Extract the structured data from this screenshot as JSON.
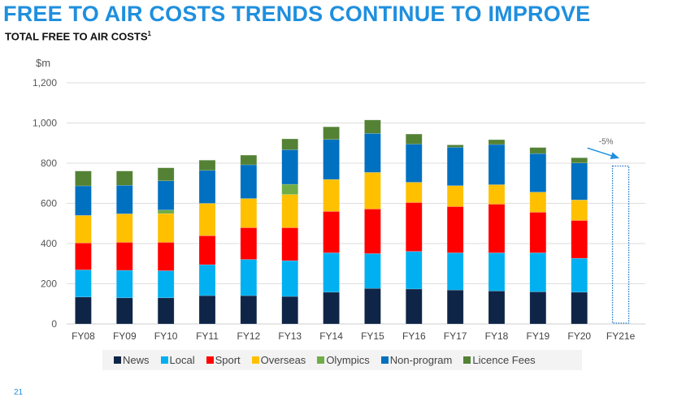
{
  "header": {
    "title": "FREE TO AIR COSTS TRENDS CONTINUE TO IMPROVE",
    "subtitle": "TOTAL FREE TO AIR COSTS",
    "subtitle_footnote": "1"
  },
  "page_number": "21",
  "chart_data": {
    "type": "bar",
    "stacked": true,
    "title": "TOTAL FREE TO AIR COSTS",
    "xlabel": "",
    "ylabel": "$m",
    "ylim": [
      0,
      1200
    ],
    "yticks": [
      0,
      200,
      400,
      600,
      800,
      1000,
      1200
    ],
    "ytick_labels": [
      "0",
      "200",
      "400",
      "600",
      "800",
      "1,000",
      "1,200"
    ],
    "grid": true,
    "legend_position": "bottom",
    "categories": [
      "FY08",
      "FY09",
      "FY10",
      "FY11",
      "FY12",
      "FY13",
      "FY14",
      "FY15",
      "FY16",
      "FY17",
      "FY18",
      "FY19",
      "FY20",
      "FY21e"
    ],
    "series": [
      {
        "name": "News",
        "color": "#0e2547",
        "values": [
          134,
          130,
          130,
          141,
          141,
          137,
          158,
          177,
          174,
          169,
          164,
          160,
          158,
          null
        ]
      },
      {
        "name": "Local",
        "color": "#00b0f0",
        "values": [
          135,
          137,
          135,
          154,
          180,
          178,
          196,
          173,
          187,
          185,
          190,
          194,
          169,
          null
        ]
      },
      {
        "name": "Sport",
        "color": "#ff0000",
        "values": [
          134,
          139,
          141,
          144,
          158,
          164,
          206,
          222,
          243,
          230,
          242,
          202,
          188,
          null
        ]
      },
      {
        "name": "Overseas",
        "color": "#ffc000",
        "values": [
          137,
          142,
          143,
          161,
          145,
          165,
          159,
          182,
          101,
          104,
          97,
          100,
          102,
          null
        ]
      },
      {
        "name": "Olympics",
        "color": "#70ad47",
        "values": [
          0,
          0,
          18,
          0,
          0,
          51,
          0,
          0,
          0,
          0,
          0,
          0,
          0,
          null
        ]
      },
      {
        "name": "Non-program",
        "color": "#0070c0",
        "values": [
          147,
          142,
          145,
          164,
          168,
          172,
          199,
          194,
          190,
          191,
          200,
          192,
          184,
          null
        ]
      },
      {
        "name": "Licence Fees",
        "color": "#548235",
        "values": [
          74,
          71,
          65,
          51,
          48,
          54,
          63,
          67,
          50,
          12,
          24,
          30,
          26,
          null
        ]
      }
    ],
    "totals": [
      761,
      761,
      777,
      815,
      840,
      921,
      981,
      1015,
      945,
      891,
      917,
      878,
      827,
      786
    ],
    "forecast": {
      "category": "FY21e",
      "value": 786,
      "style": "dotted-outline",
      "color": "#1f77c9"
    },
    "annotations": [
      {
        "text": "-5%",
        "type": "arrow",
        "from": "FY20",
        "to": "FY21e",
        "color": "#1f8fde"
      }
    ]
  }
}
